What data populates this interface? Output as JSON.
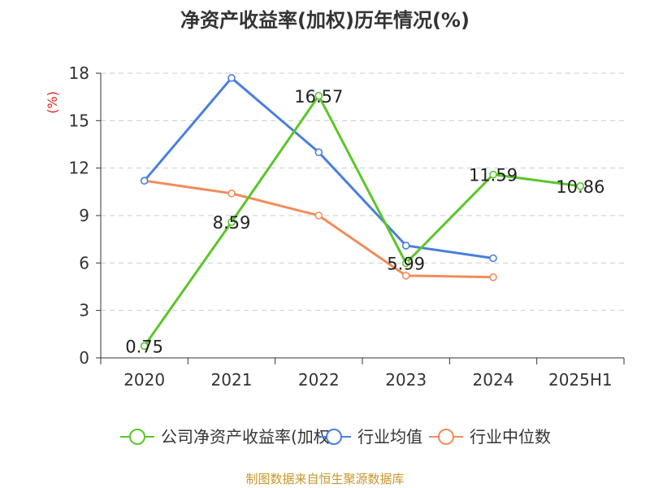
{
  "chart_data": {
    "type": "line",
    "title": "净资产收益率(加权)历年情况(%)",
    "ylabel": "(%)",
    "xlabel": "",
    "categories": [
      "2020",
      "2021",
      "2022",
      "2023",
      "2024",
      "2025H1"
    ],
    "ylim": [
      0,
      18
    ],
    "yticks": [
      0,
      3,
      6,
      9,
      12,
      15,
      18
    ],
    "grid": true,
    "legend_position": "bottom",
    "series": [
      {
        "name": "公司净资产收益率(加权)",
        "color": "#5cc52a",
        "values": [
          0.75,
          8.59,
          16.57,
          5.99,
          11.59,
          10.86
        ],
        "data_labels": [
          "0.75",
          "8.59",
          "16.57",
          "5.99",
          "11.59",
          "10.86"
        ]
      },
      {
        "name": "行业均值",
        "color": "#4a7fdb",
        "values": [
          11.2,
          17.7,
          13.0,
          7.1,
          6.3,
          null
        ]
      },
      {
        "name": "行业中位数",
        "color": "#f28c5a",
        "values": [
          11.2,
          10.4,
          9.0,
          5.2,
          5.1,
          null
        ]
      }
    ]
  },
  "source": "制图数据来自恒生聚源数据库",
  "colors": {
    "axis": "#333333",
    "grid": "#cccccc",
    "ylabel": "#e02020",
    "source": "#c8962a"
  }
}
